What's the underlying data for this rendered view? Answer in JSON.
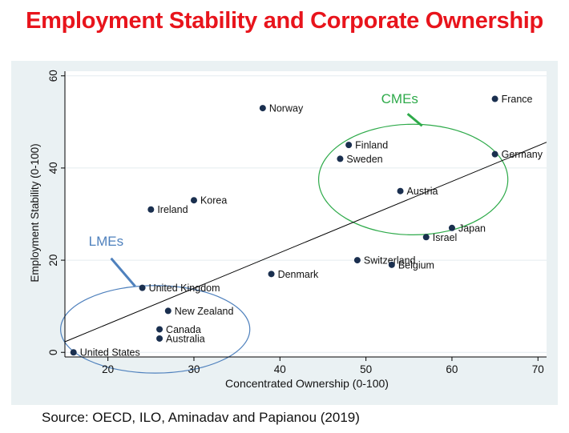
{
  "title": "Employment Stability and Corporate Ownership",
  "source": "Source: OECD, ILO, Aminadav and Papianou (2019)",
  "chart_data": {
    "type": "scatter",
    "xlabel": "Concentrated Ownership (0-100)",
    "ylabel": "Employment Stability (0-100)",
    "xlim": [
      15,
      71
    ],
    "ylim": [
      -1,
      61
    ],
    "xticks": [
      20,
      30,
      40,
      50,
      60,
      70
    ],
    "yticks": [
      0,
      20,
      40,
      60
    ],
    "grid": true,
    "points": [
      {
        "label": "United States",
        "x": 16,
        "y": 0
      },
      {
        "label": "Australia",
        "x": 26,
        "y": 3
      },
      {
        "label": "Canada",
        "x": 26,
        "y": 5
      },
      {
        "label": "New Zealand",
        "x": 27,
        "y": 9
      },
      {
        "label": "United Kingdom",
        "x": 24,
        "y": 14
      },
      {
        "label": "Ireland",
        "x": 25,
        "y": 31
      },
      {
        "label": "Korea",
        "x": 30,
        "y": 33
      },
      {
        "label": "Norway",
        "x": 38,
        "y": 53
      },
      {
        "label": "Denmark",
        "x": 39,
        "y": 17
      },
      {
        "label": "Switzerland",
        "x": 49,
        "y": 20
      },
      {
        "label": "Belgium",
        "x": 53,
        "y": 19
      },
      {
        "label": "Finland",
        "x": 48,
        "y": 45
      },
      {
        "label": "Sweden",
        "x": 47,
        "y": 42
      },
      {
        "label": "Austria",
        "x": 54,
        "y": 35
      },
      {
        "label": "Israel",
        "x": 57,
        "y": 25
      },
      {
        "label": "Japan",
        "x": 60,
        "y": 27
      },
      {
        "label": "Germany",
        "x": 65,
        "y": 43
      },
      {
        "label": "France",
        "x": 65,
        "y": 55
      }
    ],
    "fit_line": {
      "x": [
        15,
        71
      ],
      "y": [
        2.3,
        45.6
      ]
    },
    "annotations": [
      {
        "text": "LMEs",
        "color": "#4f81bd",
        "ellipse_center": [
          25.5,
          5
        ],
        "ellipse_radius": [
          11,
          9.5
        ]
      },
      {
        "text": "CMEs",
        "color": "#2eaa4a",
        "ellipse_center": [
          55.5,
          37.5
        ],
        "ellipse_radius": [
          11,
          12
        ]
      }
    ],
    "colors": {
      "marker": "#1a2f4f",
      "fit_line": "#000000",
      "plot_bg": "#ffffff",
      "outer_bg": "#eaf1f3",
      "grid": "#e4ecef"
    }
  }
}
